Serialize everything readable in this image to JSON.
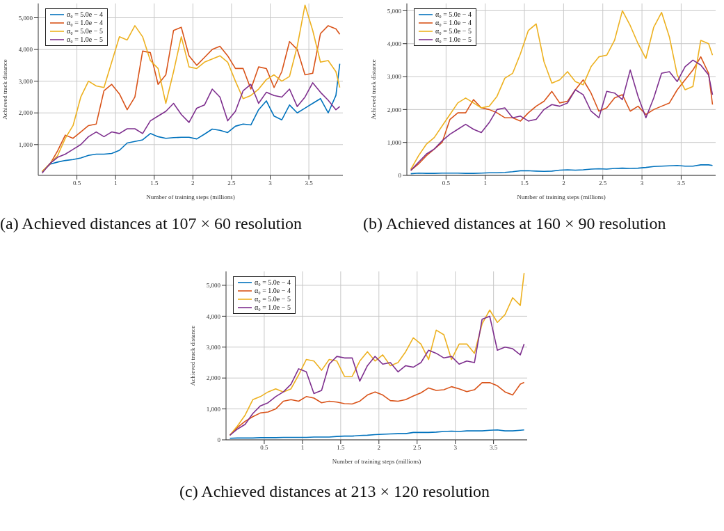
{
  "chart_data": [
    {
      "type": "line",
      "xlabel": "Number of training steps (millions)",
      "ylabel": "Achieved track distance",
      "annotations": [
        "(a) Achieved distances at 107 × 60 resolution"
      ],
      "legend": "top left",
      "grid": true,
      "marker": "none",
      "line_style": "solid",
      "xlim": [
        0,
        3.94
      ],
      "xticks": [
        0.5,
        1,
        1.5,
        2,
        2.5,
        3,
        3.5
      ],
      "ylim": [
        30,
        5450
      ],
      "yticks": [
        {
          "value": 1000,
          "label": "1,000"
        },
        {
          "value": 2000,
          "label": "2,000"
        },
        {
          "value": 3000,
          "label": "3,000"
        },
        {
          "value": 4000,
          "label": "4,000"
        },
        {
          "value": 5000,
          "label": "5,000"
        }
      ],
      "x": [
        0.05,
        0.15,
        0.25,
        0.35,
        0.45,
        0.55,
        0.65,
        0.75,
        0.85,
        0.95,
        1.05,
        1.15,
        1.25,
        1.35,
        1.45,
        1.55,
        1.65,
        1.75,
        1.85,
        1.95,
        2.05,
        2.15,
        2.25,
        2.35,
        2.45,
        2.55,
        2.65,
        2.75,
        2.85,
        2.95,
        3.05,
        3.15,
        3.25,
        3.35,
        3.45,
        3.55,
        3.65,
        3.75,
        3.85,
        3.9
      ],
      "series": [
        {
          "name": "α₀ = 5.0e − 4",
          "color": "#0072bd",
          "values": [
            150,
            380,
            450,
            500,
            530,
            580,
            660,
            700,
            700,
            720,
            820,
            1050,
            1100,
            1150,
            1350,
            1250,
            1200,
            1220,
            1230,
            1230,
            1180,
            1330,
            1490,
            1450,
            1380,
            1580,
            1650,
            1620,
            2100,
            2380,
            1900,
            1780,
            2250,
            2000,
            2150,
            2300,
            2450,
            2000,
            2550,
            3550
          ]
        },
        {
          "name": "α₀ = 1.0e − 4",
          "color": "#d95319",
          "values": [
            150,
            380,
            800,
            1300,
            1200,
            1400,
            1600,
            1650,
            2700,
            2900,
            2600,
            2100,
            2500,
            3950,
            3900,
            2900,
            3200,
            4600,
            4700,
            3800,
            3500,
            3750,
            4000,
            4100,
            3800,
            3400,
            3400,
            2750,
            3450,
            3400,
            2800,
            3300,
            4250,
            4000,
            3200,
            3250,
            4500,
            4750,
            4650,
            4480
          ]
        },
        {
          "name": "α₀ = 5.0e − 5",
          "color": "#edb120",
          "values": [
            150,
            400,
            650,
            1200,
            1600,
            2500,
            3000,
            2850,
            2800,
            3600,
            4400,
            4300,
            4750,
            4400,
            3650,
            3400,
            2300,
            3300,
            4400,
            3450,
            3400,
            3600,
            3700,
            3800,
            3600,
            3000,
            2450,
            2550,
            2750,
            3050,
            3200,
            3000,
            3150,
            4100,
            5400,
            4600,
            3600,
            3650,
            3300,
            2800
          ]
        },
        {
          "name": "α₀ = 1.0e − 5",
          "color": "#7e2f8e",
          "values": [
            100,
            400,
            600,
            700,
            850,
            1000,
            1250,
            1400,
            1250,
            1400,
            1350,
            1500,
            1500,
            1350,
            1750,
            1900,
            2050,
            2300,
            1950,
            1700,
            2150,
            2250,
            2750,
            2500,
            1750,
            2050,
            2700,
            2900,
            2300,
            2650,
            2550,
            2500,
            2750,
            2200,
            2500,
            2950,
            2650,
            2400,
            2100,
            2200
          ]
        }
      ]
    },
    {
      "type": "line",
      "xlabel": "Number of training steps (millions)",
      "ylabel": "Achieved track distance",
      "annotations": [
        "(b) Achieved distances at 160 × 90 resolution"
      ],
      "legend": "top left",
      "grid": true,
      "marker": "none",
      "line_style": "solid",
      "xlim": [
        0,
        3.94
      ],
      "xticks": [
        0.5,
        1,
        1.5,
        2,
        2.5,
        3,
        3.5
      ],
      "ylim": [
        0,
        5220
      ],
      "yticks": [
        0,
        {
          "value": 1000,
          "label": "1,000"
        },
        {
          "value": 2000,
          "label": "2,000"
        },
        {
          "value": 3000,
          "label": "3,000"
        },
        {
          "value": 4000,
          "label": "4,000"
        },
        {
          "value": 5000,
          "label": "5,000"
        }
      ],
      "x": [
        0.05,
        0.15,
        0.25,
        0.35,
        0.45,
        0.55,
        0.65,
        0.75,
        0.85,
        0.95,
        1.05,
        1.15,
        1.25,
        1.35,
        1.45,
        1.55,
        1.65,
        1.75,
        1.85,
        1.95,
        2.05,
        2.15,
        2.25,
        2.35,
        2.45,
        2.55,
        2.65,
        2.75,
        2.85,
        2.95,
        3.05,
        3.15,
        3.25,
        3.35,
        3.45,
        3.55,
        3.65,
        3.75,
        3.85,
        3.9
      ],
      "series": [
        {
          "name": "α₀ = 5.0e − 4",
          "color": "#0072bd",
          "values": [
            50,
            70,
            60,
            60,
            70,
            70,
            70,
            60,
            60,
            70,
            80,
            80,
            90,
            110,
            140,
            140,
            130,
            120,
            130,
            160,
            170,
            160,
            170,
            190,
            200,
            190,
            210,
            220,
            210,
            220,
            240,
            270,
            280,
            290,
            300,
            280,
            280,
            320,
            320,
            300
          ]
        },
        {
          "name": "α₀ = 1.0e − 4",
          "color": "#d95319",
          "values": [
            150,
            350,
            600,
            800,
            1000,
            1700,
            1900,
            1900,
            2300,
            2050,
            2000,
            1900,
            1750,
            1750,
            1650,
            1900,
            2100,
            2250,
            2550,
            2200,
            2250,
            2600,
            2900,
            2500,
            1950,
            2050,
            2350,
            2450,
            1950,
            2100,
            1850,
            2000,
            2100,
            2200,
            2600,
            2900,
            3200,
            3600,
            3100,
            2150
          ]
        },
        {
          "name": "α₀ = 5.0e − 5",
          "color": "#edb120",
          "values": [
            180,
            600,
            950,
            1150,
            1500,
            1850,
            2200,
            2350,
            2200,
            2050,
            2100,
            2400,
            2950,
            3100,
            3700,
            4400,
            4600,
            3450,
            2800,
            2900,
            3150,
            2850,
            2750,
            3300,
            3600,
            3650,
            4100,
            5000,
            4550,
            4000,
            3550,
            4500,
            4950,
            4200,
            3050,
            2600,
            2700,
            4100,
            4000,
            3650
          ]
        },
        {
          "name": "α₀ = 1.0e − 5",
          "color": "#7e2f8e",
          "values": [
            150,
            400,
            650,
            800,
            1050,
            1250,
            1400,
            1550,
            1400,
            1300,
            1600,
            2000,
            2050,
            1750,
            1800,
            1650,
            1700,
            2000,
            2150,
            2100,
            2200,
            2600,
            2450,
            1950,
            1750,
            2550,
            2500,
            2300,
            3200,
            2400,
            1750,
            2350,
            3100,
            3150,
            2850,
            3300,
            3500,
            3350,
            3050,
            2450
          ]
        }
      ]
    },
    {
      "type": "line",
      "xlabel": "Number of training steps (millions)",
      "ylabel": "Achieved track distance",
      "annotations": [
        "(c) Achieved distances at 213 × 120 resolution"
      ],
      "legend": "top left",
      "grid": true,
      "marker": "none",
      "line_style": "solid",
      "xlim": [
        0,
        3.94
      ],
      "xticks": [
        0.5,
        1,
        1.5,
        2,
        2.5,
        3,
        3.5
      ],
      "ylim": [
        0,
        5450
      ],
      "yticks": [
        0,
        {
          "value": 1000,
          "label": "1,000"
        },
        {
          "value": 2000,
          "label": "2,000"
        },
        {
          "value": 3000,
          "label": "3,000"
        },
        {
          "value": 4000,
          "label": "4,000"
        },
        {
          "value": 5000,
          "label": "5,000"
        }
      ],
      "x": [
        0.05,
        0.15,
        0.25,
        0.35,
        0.45,
        0.55,
        0.65,
        0.75,
        0.85,
        0.95,
        1.05,
        1.15,
        1.25,
        1.35,
        1.45,
        1.55,
        1.65,
        1.75,
        1.85,
        1.95,
        2.05,
        2.15,
        2.25,
        2.35,
        2.45,
        2.55,
        2.65,
        2.75,
        2.85,
        2.95,
        3.05,
        3.15,
        3.25,
        3.35,
        3.45,
        3.55,
        3.65,
        3.75,
        3.85,
        3.9
      ],
      "series": [
        {
          "name": "α₀ = 5.0e − 4",
          "color": "#0072bd",
          "values": [
            50,
            60,
            60,
            60,
            70,
            70,
            70,
            80,
            80,
            80,
            80,
            90,
            90,
            90,
            110,
            120,
            120,
            140,
            150,
            170,
            180,
            190,
            200,
            200,
            240,
            240,
            240,
            250,
            270,
            280,
            270,
            290,
            290,
            290,
            310,
            320,
            290,
            290,
            310,
            320
          ]
        },
        {
          "name": "α₀ = 1.0e − 4",
          "color": "#d95319",
          "values": [
            150,
            400,
            600,
            750,
            870,
            900,
            1000,
            1250,
            1300,
            1250,
            1400,
            1350,
            1200,
            1250,
            1220,
            1170,
            1160,
            1250,
            1450,
            1550,
            1450,
            1270,
            1250,
            1300,
            1420,
            1520,
            1680,
            1600,
            1620,
            1720,
            1650,
            1560,
            1620,
            1850,
            1850,
            1750,
            1550,
            1450,
            1800,
            1860
          ]
        },
        {
          "name": "α₀ = 5.0e − 5",
          "color": "#edb120",
          "values": [
            150,
            450,
            800,
            1300,
            1400,
            1550,
            1650,
            1550,
            1650,
            2100,
            2600,
            2550,
            2250,
            2600,
            2550,
            2050,
            2050,
            2550,
            2850,
            2550,
            2750,
            2400,
            2500,
            2850,
            3300,
            3100,
            2600,
            3550,
            3400,
            2600,
            3100,
            3100,
            2800,
            3750,
            4200,
            3800,
            4050,
            4600,
            4350,
            5400
          ]
        },
        {
          "name": "α₀ = 1.0e − 5",
          "color": "#7e2f8e",
          "values": [
            150,
            350,
            500,
            850,
            1100,
            1200,
            1400,
            1550,
            1800,
            2300,
            2200,
            1500,
            1600,
            2450,
            2700,
            2650,
            2650,
            1900,
            2400,
            2700,
            2450,
            2500,
            2200,
            2400,
            2350,
            2500,
            2900,
            2800,
            2650,
            2700,
            2450,
            2550,
            2500,
            3900,
            4000,
            2900,
            3000,
            2950,
            2750,
            3100
          ]
        }
      ]
    }
  ]
}
